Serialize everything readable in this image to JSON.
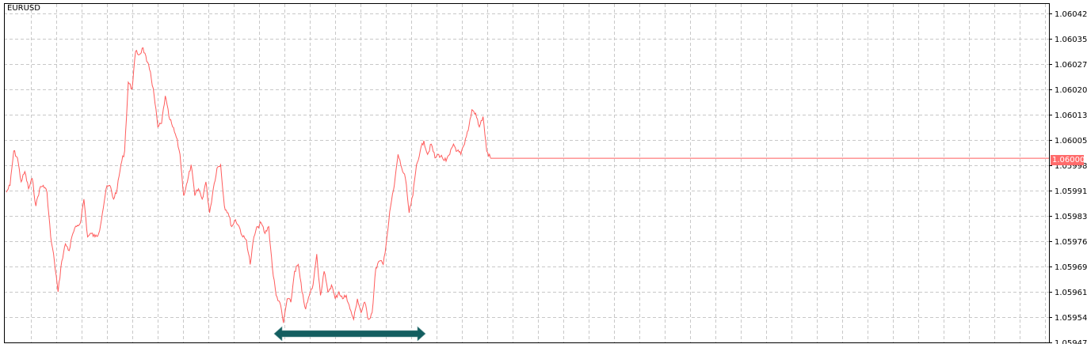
{
  "symbol": "EURUSD",
  "colors": {
    "line": "#ff5c5c",
    "grid": "#c8c8c8",
    "range_bar": "#135e60",
    "price_tag": "#ff6b6b"
  },
  "current_price_label": "1.06000",
  "range_bar_icon": "double-arrow-horizontal",
  "chart_data": {
    "type": "line",
    "title": "EURUSD",
    "grid": true,
    "ylim": [
      1.05947,
      1.06042
    ],
    "y_ticks": [
      "1.06042",
      "1.06035",
      "1.06027",
      "1.06020",
      "1.06013",
      "1.06005",
      "1.05998",
      "1.05991",
      "1.05983",
      "1.05976",
      "1.05969",
      "1.05961",
      "1.05954",
      "1.05947"
    ],
    "current_price": 1.06,
    "values": [
      1.0599,
      1.05992,
      1.06002,
      1.06,
      1.05993,
      1.05996,
      1.05991,
      1.05994,
      1.05986,
      1.05991,
      1.05992,
      1.0599,
      1.05977,
      1.0597,
      1.05961,
      1.0597,
      1.05975,
      1.05973,
      1.05978,
      1.0598,
      1.05981,
      1.05988,
      1.05977,
      1.05978,
      1.05977,
      1.05978,
      1.05984,
      1.05991,
      1.05992,
      1.05988,
      1.05991,
      1.05998,
      1.06002,
      1.06022,
      1.0602,
      1.06031,
      1.0603,
      1.06032,
      1.06028,
      1.06025,
      1.06018,
      1.06009,
      1.0601,
      1.06018,
      1.06012,
      1.06009,
      1.06006,
      1.06001,
      1.05989,
      1.05993,
      1.05998,
      1.05989,
      1.05991,
      1.05988,
      1.05993,
      1.05984,
      1.05991,
      1.05997,
      1.05998,
      1.05986,
      1.05984,
      1.0598,
      1.05982,
      1.0598,
      1.05977,
      1.05976,
      1.05969,
      1.05977,
      1.0598,
      1.05981,
      1.05978,
      1.0598,
      1.05968,
      1.0596,
      1.05958,
      1.05952,
      1.05959,
      1.05958,
      1.05967,
      1.05969,
      1.05961,
      1.05956,
      1.0596,
      1.05963,
      1.05972,
      1.0596,
      1.05967,
      1.05961,
      1.05963,
      1.05959,
      1.05961,
      1.05959,
      1.0596,
      1.05956,
      1.05953,
      1.05959,
      1.05955,
      1.05958,
      1.05953,
      1.05955,
      1.05968,
      1.0597,
      1.05969,
      1.05977,
      1.05986,
      1.05992,
      1.06001,
      1.05997,
      1.05994,
      1.05984,
      1.05989,
      1.05998,
      1.06002,
      1.06005,
      1.06001,
      1.06004,
      1.06,
      1.06001,
      1.06,
      1.05999,
      1.06001,
      1.06004,
      1.06002,
      1.06001,
      1.06004,
      1.06008,
      1.06014,
      1.06013,
      1.06009,
      1.06012,
      1.06002,
      1.06
    ]
  }
}
